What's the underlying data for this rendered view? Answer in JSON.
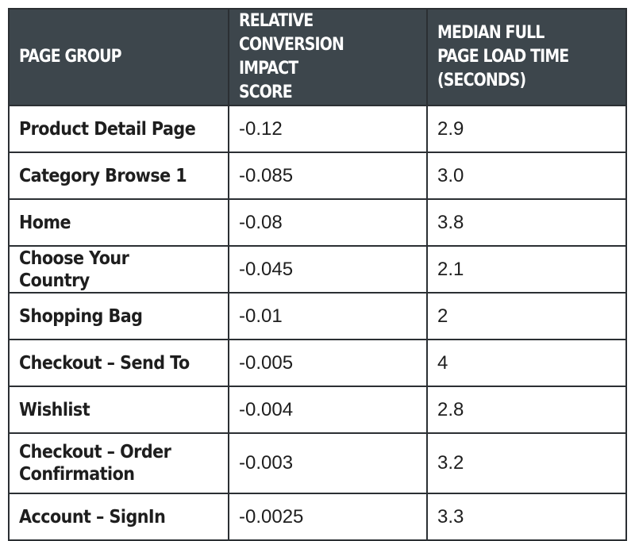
{
  "chart_data": {
    "type": "table",
    "columns": [
      "PAGE GROUP",
      "RELATIVE\nCONVERSION IMPACT\nSCORE",
      "MEDIAN FULL\nPAGE LOAD TIME\n(SECONDS)"
    ],
    "rows": [
      {
        "page_group": "Product Detail Page",
        "impact": "-0.12",
        "load_time": "2.9"
      },
      {
        "page_group": "Category Browse 1",
        "impact": "-0.085",
        "load_time": "3.0"
      },
      {
        "page_group": "Home",
        "impact": "-0.08",
        "load_time": "3.8"
      },
      {
        "page_group": "Choose Your Country",
        "impact": "-0.045",
        "load_time": "2.1"
      },
      {
        "page_group": "Shopping Bag",
        "impact": "-0.01",
        "load_time": "2"
      },
      {
        "page_group": "Checkout – Send To",
        "impact": "-0.005",
        "load_time": "4"
      },
      {
        "page_group": "Wishlist",
        "impact": "-0.004",
        "load_time": "2.8"
      },
      {
        "page_group": "Checkout – Order\nConfirmation",
        "impact": "-0.003",
        "load_time": "3.2"
      },
      {
        "page_group": "Account – SignIn",
        "impact": "-0.0025",
        "load_time": "3.3"
      }
    ],
    "colors": {
      "header_bg": "#3d464c",
      "header_text": "#ffffff",
      "border": "#2b2f33",
      "body_text": "#1e1e1e"
    }
  }
}
